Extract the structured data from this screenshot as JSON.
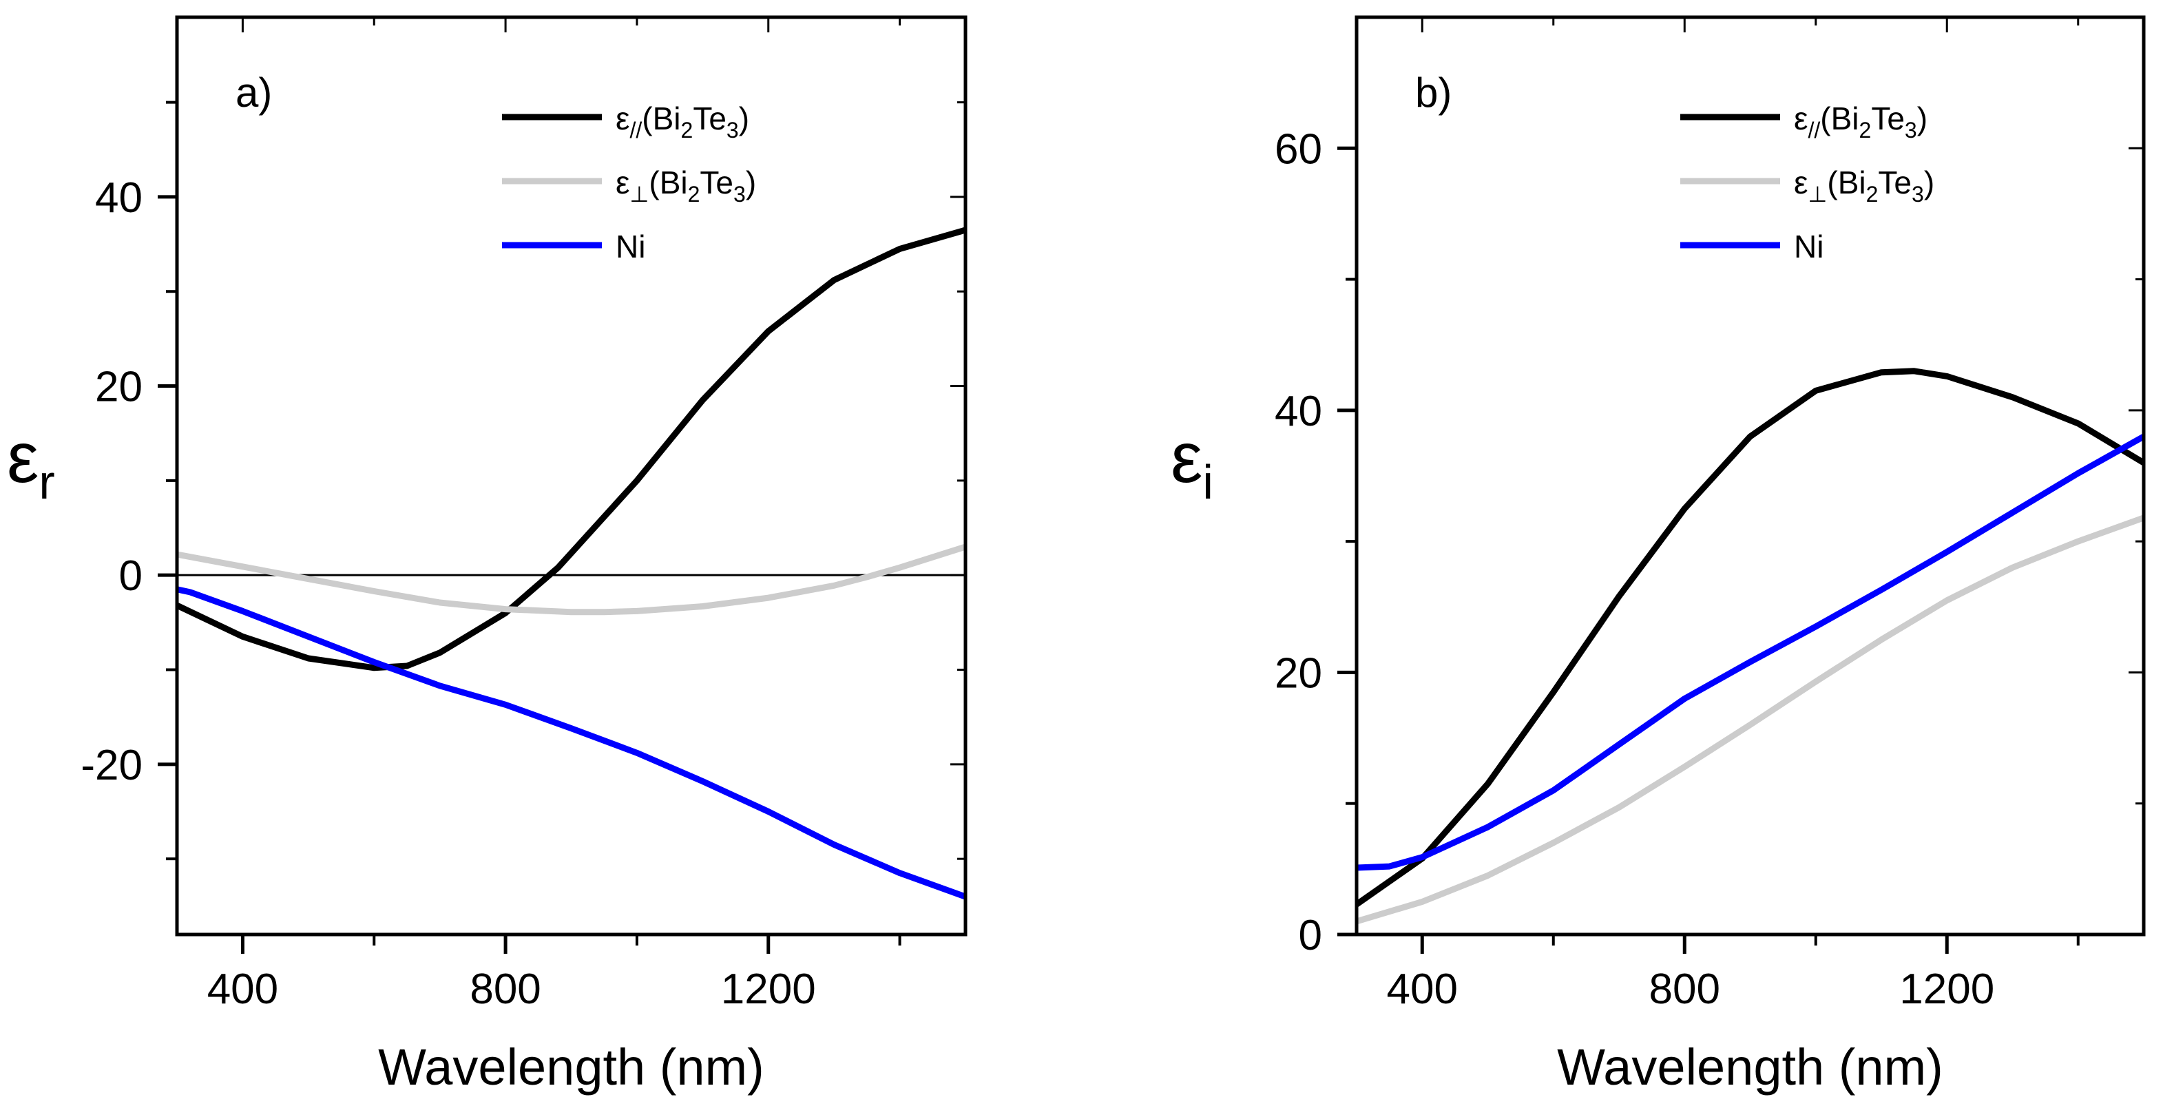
{
  "chart_data": [
    {
      "type": "line",
      "panel_label": "a)",
      "xlabel": "Wavelength (nm)",
      "ylabel": {
        "symbol": "ε",
        "subscript": "r"
      },
      "xlim": [
        300,
        1500
      ],
      "ylim": [
        -38,
        59
      ],
      "x_ticks": [
        400,
        800,
        1200
      ],
      "x_tick_labels": [
        "400",
        "800",
        "1200"
      ],
      "x_minor_ticks": [
        600,
        1000,
        1400
      ],
      "y_ticks": [
        -20,
        0,
        20,
        40
      ],
      "y_tick_labels": [
        "-20",
        "0",
        "20",
        "40"
      ],
      "y_minor_ticks": [
        -30,
        -10,
        10,
        30,
        50
      ],
      "reference_line_y": 0,
      "legend_position": "top-right",
      "series": [
        {
          "name": "ε//(Bi2Te3)",
          "legend": {
            "symbol": "ε",
            "sub": "//",
            "paren_open": "(Bi",
            "sub2": "2",
            "mid": "Te",
            "sub3": "3",
            "paren_close": ")"
          },
          "color": "#000000",
          "x": [
            300,
            400,
            500,
            600,
            650,
            700,
            800,
            880,
            1000,
            1100,
            1200,
            1300,
            1400,
            1500
          ],
          "y": [
            -3.2,
            -6.5,
            -8.8,
            -9.8,
            -9.6,
            -8.2,
            -4,
            0.8,
            10,
            18.5,
            25.8,
            31.2,
            34.5,
            36.5
          ]
        },
        {
          "name": "ε⊥(Bi2Te3)",
          "legend": {
            "symbol": "ε",
            "sub": "⊥",
            "paren_open": "(Bi",
            "sub2": "2",
            "mid": "Te",
            "sub3": "3",
            "paren_close": ")"
          },
          "color": "#cccccc",
          "x": [
            300,
            400,
            500,
            600,
            700,
            800,
            900,
            950,
            1000,
            1100,
            1200,
            1300,
            1350,
            1400,
            1500
          ],
          "y": [
            2.2,
            0.9,
            -0.4,
            -1.7,
            -2.9,
            -3.6,
            -3.9,
            -3.9,
            -3.8,
            -3.3,
            -2.4,
            -1.1,
            -0.2,
            0.8,
            3
          ]
        },
        {
          "name": "Ni",
          "legend": {
            "symbol": "",
            "sub": "",
            "paren_open": "Ni",
            "sub2": "",
            "mid": "",
            "sub3": "",
            "paren_close": ""
          },
          "color": "#0000ff",
          "x": [
            300,
            320,
            400,
            500,
            600,
            700,
            800,
            900,
            1000,
            1100,
            1200,
            1300,
            1400,
            1500
          ],
          "y": [
            -1.5,
            -1.8,
            -3.8,
            -6.5,
            -9.2,
            -11.7,
            -13.7,
            -16.2,
            -18.8,
            -21.8,
            -25,
            -28.5,
            -31.5,
            -34
          ]
        }
      ]
    },
    {
      "type": "line",
      "panel_label": "b)",
      "xlabel": "Wavelength (nm)",
      "ylabel": {
        "symbol": "ε",
        "subscript": "i"
      },
      "xlim": [
        300,
        1500
      ],
      "ylim": [
        0,
        70
      ],
      "x_ticks": [
        400,
        800,
        1200
      ],
      "x_tick_labels": [
        "400",
        "800",
        "1200"
      ],
      "x_minor_ticks": [
        600,
        1000,
        1400
      ],
      "y_ticks": [
        0,
        20,
        40,
        60
      ],
      "y_tick_labels": [
        "0",
        "20",
        "40",
        "60"
      ],
      "y_minor_ticks": [
        10,
        30,
        50
      ],
      "legend_position": "top-right",
      "series": [
        {
          "name": "ε//(Bi2Te3)",
          "legend": {
            "symbol": "ε",
            "sub": "//",
            "paren_open": "(Bi",
            "sub2": "2",
            "mid": "Te",
            "sub3": "3",
            "paren_close": ")"
          },
          "color": "#000000",
          "x": [
            300,
            400,
            500,
            600,
            700,
            800,
            900,
            1000,
            1100,
            1150,
            1200,
            1300,
            1400,
            1500
          ],
          "y": [
            2.3,
            5.8,
            11.5,
            18.5,
            25.8,
            32.5,
            38,
            41.5,
            42.9,
            43,
            42.6,
            41,
            39,
            36
          ]
        },
        {
          "name": "ε⊥(Bi2Te3)",
          "legend": {
            "symbol": "ε",
            "sub": "⊥",
            "paren_open": "(Bi",
            "sub2": "2",
            "mid": "Te",
            "sub3": "3",
            "paren_close": ")"
          },
          "color": "#cccccc",
          "x": [
            300,
            400,
            500,
            600,
            700,
            800,
            900,
            1000,
            1100,
            1200,
            1300,
            1400,
            1500
          ],
          "y": [
            1,
            2.5,
            4.5,
            7,
            9.7,
            12.8,
            16,
            19.3,
            22.5,
            25.5,
            28,
            30,
            31.8
          ]
        },
        {
          "name": "Ni",
          "legend": {
            "symbol": "",
            "sub": "",
            "paren_open": "Ni",
            "sub2": "",
            "mid": "",
            "sub3": "",
            "paren_close": ""
          },
          "color": "#0000ff",
          "x": [
            300,
            350,
            400,
            500,
            600,
            700,
            800,
            900,
            1000,
            1100,
            1200,
            1300,
            1400,
            1500
          ],
          "y": [
            5.1,
            5.2,
            5.9,
            8.2,
            11,
            14.5,
            18,
            20.8,
            23.5,
            26.3,
            29.2,
            32.2,
            35.2,
            38
          ]
        }
      ]
    }
  ]
}
